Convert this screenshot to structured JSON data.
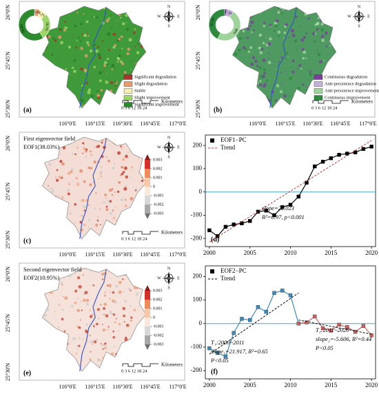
{
  "lat_labels": [
    "26°0'N",
    "25°45'N",
    "25°30'N"
  ],
  "lon_labels": [
    "116°0'E",
    "116°15'E",
    "116°30'E",
    "116°45'E",
    "117°0'E"
  ],
  "compass": {
    "n": "N",
    "s": "S",
    "w": "W",
    "e": "E"
  },
  "scale": {
    "label": "0 3 6 12 18 24",
    "unit": "Kilometers"
  },
  "maps": [
    {
      "label": "(a)",
      "legend": [
        {
          "label": "Significant degradation",
          "color": "#a8362c"
        },
        {
          "label": "Slight degradation",
          "color": "#e89a6a"
        },
        {
          "label": "Stable",
          "color": "#f4eeb0"
        },
        {
          "label": "Slight improvement",
          "color": "#9fd46a"
        },
        {
          "label": "Significant improvement",
          "color": "#2e8a2e"
        }
      ],
      "donut": {
        "values": [
          0.8,
          4.9,
          8.2,
          26.7,
          59.4
        ],
        "value_labels": [
          null,
          "4.9%",
          "8.2%",
          "26.7%",
          "59.4%"
        ]
      }
    },
    {
      "label": "(b)",
      "legend": [
        {
          "label": "Continuous degradation",
          "color": "#7a3e9c"
        },
        {
          "label": "Anti-persistence degradation",
          "color": "#c6b2d8"
        },
        {
          "label": "Anti-persistence improvement",
          "color": "#9ed49a"
        },
        {
          "label": "Continuous improvement",
          "color": "#2e8a3e"
        }
      ],
      "donut": {
        "values": [
          2.2,
          7.3,
          48.0,
          42.5
        ],
        "value_labels": [
          "2.2%",
          "7.3%",
          "48%",
          "42.5%"
        ]
      }
    },
    {
      "label": "(c)",
      "title": "First eigenvector field",
      "subtitle": "EOF1(38.03%)",
      "colorbar": {
        "ticks": [
          0.003,
          0.002,
          0.001,
          0,
          -0.001,
          -0.002,
          -0.003
        ],
        "colors": [
          "#8b1a1a",
          "#d7302a",
          "#f08a5a",
          "#f8c8a8",
          "#fbe8dc",
          "#d8d8d8",
          "#a8a8a8",
          "#6e6e6e"
        ]
      }
    },
    {
      "label": "(e)",
      "title": "Second eigenvector field",
      "subtitle": "EOF2(10.95%)",
      "colorbar": {
        "ticks": [
          0.003,
          0.002,
          0.001,
          0,
          -0.001,
          -0.002,
          -0.003
        ],
        "colors": [
          "#8b1a1a",
          "#d7302a",
          "#f08a5a",
          "#f8c8a8",
          "#fbe8dc",
          "#d8d8d8",
          "#a8a8a8",
          "#6e6e6e"
        ]
      }
    }
  ],
  "chart_data": [
    {
      "type": "line",
      "label": "(d)",
      "x": [
        2000,
        2001,
        2002,
        2003,
        2004,
        2005,
        2006,
        2007,
        2008,
        2009,
        2010,
        2011,
        2012,
        2013,
        2014,
        2015,
        2016,
        2017,
        2018,
        2019,
        2020
      ],
      "xlim": [
        1999.5,
        2020.5
      ],
      "xticks": [
        2000,
        2005,
        2010,
        2015,
        2020
      ],
      "ylim": [
        -235,
        245
      ],
      "yticks": [
        -200,
        -100,
        0,
        100,
        200
      ],
      "reference_line": {
        "value": 0,
        "color": "#3aa8c8"
      },
      "series": [
        {
          "name": "EOF1−PC",
          "color": "#000000",
          "values": [
            -165,
            -190,
            -150,
            -140,
            -135,
            -125,
            -85,
            -80,
            -100,
            -65,
            -55,
            -20,
            40,
            110,
            130,
            145,
            160,
            165,
            170,
            185,
            195
          ]
        },
        {
          "name": "Trend",
          "color": "#d03030",
          "dash": true,
          "x": [
            2000,
            2020
          ],
          "values": [
            -215,
            222
          ]
        }
      ],
      "annotations": [
        {
          "text": "slope=22.023",
          "color": "#000000"
        },
        {
          "text": "R²=0.97, p<0.001",
          "color": "#000000"
        }
      ]
    },
    {
      "type": "line",
      "label": "(f)",
      "x": [
        2000,
        2001,
        2002,
        2003,
        2004,
        2005,
        2006,
        2007,
        2008,
        2009,
        2010,
        2011,
        2012,
        2013,
        2014,
        2015,
        2016,
        2017,
        2018,
        2019,
        2020
      ],
      "xlim": [
        1999.5,
        2020.5
      ],
      "xticks": [
        2000,
        2005,
        2010,
        2015,
        2020
      ],
      "ylim": [
        -235,
        245
      ],
      "yticks": [
        -200,
        -100,
        0,
        100,
        200
      ],
      "reference_line": {
        "value": 0,
        "color": "#3aa8c8"
      },
      "series": [
        {
          "name": "EOF2−PC",
          "color": "#000000",
          "values": [
            -105,
            -125,
            -140,
            -40,
            20,
            15,
            70,
            50,
            130,
            140,
            120,
            0,
            5,
            30,
            -20,
            -30,
            -5,
            -15,
            -35,
            -10,
            -50
          ],
          "point_colors": [
            "#3a8cc0",
            "#3a8cc0",
            "#3a8cc0",
            "#3a8cc0",
            "#3a8cc0",
            "#3a8cc0",
            "#3a8cc0",
            "#3a8cc0",
            "#3a8cc0",
            "#3a8cc0",
            "#3a8cc0",
            "#d06060",
            "#d06060",
            "#d06060",
            "#d06060",
            "#d06060",
            "#d06060",
            "#d06060",
            "#d06060",
            "#d06060",
            "#d06060"
          ]
        },
        {
          "name": "Trend",
          "color": "#000000",
          "dash": true,
          "x": [
            2000,
            2011
          ],
          "values": [
            -130,
            130
          ]
        },
        {
          "color": "#000000",
          "dash": true,
          "x": [
            2011,
            2020
          ],
          "values": [
            15,
            -45
          ]
        }
      ],
      "annotations": [
        {
          "text": "T₁:2000~2011",
          "color": "#1f5a80"
        },
        {
          "text": "slope₁=21.917, R²=0.65",
          "color": "#1f5a80"
        },
        {
          "text": "P<0.05",
          "color": "#1f5a80"
        },
        {
          "text": "T₂:2011~2020",
          "color": "#a02828"
        },
        {
          "text": "slope₂=-5.606, R²=0.44",
          "color": "#a02828"
        },
        {
          "text": "P<0.05",
          "color": "#a02828"
        }
      ]
    }
  ]
}
